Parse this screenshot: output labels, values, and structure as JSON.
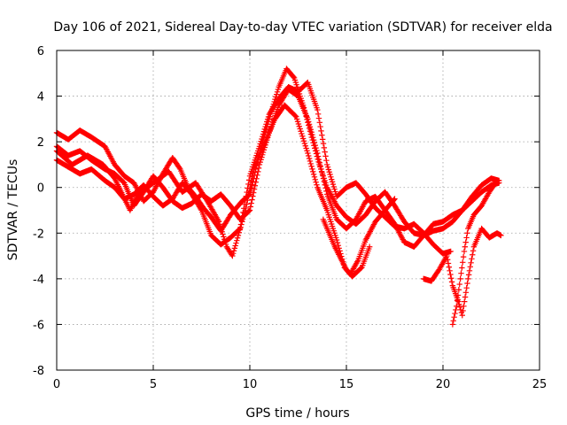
{
  "chart_data": {
    "type": "scatter",
    "title": "Day 106 of 2021, Sidereal Day-to-day VTEC variation (SDTVAR) for receiver elda",
    "xlabel": "GPS time / hours",
    "ylabel": "SDTVAR / TECUs",
    "xlim": [
      0,
      25
    ],
    "ylim": [
      -8,
      6
    ],
    "xticks": [
      0,
      5,
      10,
      15,
      20,
      25
    ],
    "yticks": [
      -8,
      -6,
      -4,
      -2,
      0,
      2,
      4,
      6
    ],
    "grid": true,
    "marker": "+",
    "series": [
      {
        "name": "SDTVAR",
        "color": "#ff0000",
        "tracks": [
          [
            [
              0,
              2.4
            ],
            [
              0.6,
              2.1
            ],
            [
              1.2,
              2.5
            ],
            [
              1.8,
              2.2
            ],
            [
              2.5,
              1.8
            ],
            [
              3,
              1.0
            ],
            [
              3.5,
              0.5
            ],
            [
              4,
              0.2
            ],
            [
              4.5,
              -0.6
            ],
            [
              5,
              -0.2
            ],
            [
              5.5,
              0.6
            ],
            [
              6,
              1.3
            ],
            [
              6.4,
              0.8
            ],
            [
              6.8,
              0.0
            ],
            [
              7.2,
              -0.4
            ],
            [
              7.6,
              -0.9
            ],
            [
              8,
              -1.3
            ],
            [
              8.5,
              -1.9
            ],
            [
              9,
              -1.2
            ],
            [
              9.6,
              -0.6
            ],
            [
              10,
              -0.3
            ],
            [
              10.5,
              1.5
            ],
            [
              11,
              3.0
            ],
            [
              11.5,
              4.4
            ],
            [
              11.9,
              5.2
            ],
            [
              12.3,
              4.8
            ],
            [
              12.8,
              3.5
            ],
            [
              13.2,
              2.2
            ],
            [
              13.6,
              1.0
            ],
            [
              14,
              0.0
            ],
            [
              14.5,
              -0.8
            ],
            [
              15,
              -1.3
            ],
            [
              15.5,
              -1.6
            ],
            [
              16,
              -1.2
            ],
            [
              16.5,
              -0.6
            ],
            [
              17,
              -0.2
            ],
            [
              17.5,
              -0.8
            ],
            [
              18,
              -1.5
            ],
            [
              18.5,
              -2.0
            ],
            [
              19,
              -2.1
            ],
            [
              19.5,
              -1.9
            ],
            [
              20,
              -1.8
            ],
            [
              20.5,
              -1.5
            ],
            [
              21,
              -1.0
            ],
            [
              21.5,
              -0.4
            ],
            [
              22,
              0.1
            ],
            [
              22.5,
              0.4
            ],
            [
              22.9,
              0.3
            ]
          ],
          [
            [
              0,
              1.8
            ],
            [
              0.6,
              1.4
            ],
            [
              1.2,
              1.6
            ],
            [
              1.8,
              1.2
            ],
            [
              2.5,
              0.8
            ],
            [
              3,
              0.6
            ],
            [
              3.5,
              0.2
            ],
            [
              4,
              -0.8
            ],
            [
              4.5,
              -0.2
            ],
            [
              5,
              0.5
            ],
            [
              5.5,
              0.0
            ],
            [
              6,
              -0.6
            ],
            [
              6.5,
              -0.9
            ],
            [
              7,
              -0.7
            ],
            [
              7.5,
              -0.3
            ],
            [
              8,
              -0.6
            ],
            [
              8.5,
              -0.3
            ],
            [
              9,
              -0.8
            ],
            [
              9.5,
              -1.4
            ],
            [
              10,
              -1.0
            ],
            [
              10.5,
              1.0
            ],
            [
              11,
              2.4
            ],
            [
              11.5,
              3.6
            ],
            [
              12,
              4.3
            ],
            [
              12.5,
              4.0
            ],
            [
              13,
              3.0
            ],
            [
              13.5,
              1.5
            ],
            [
              14,
              -0.3
            ],
            [
              14.5,
              -1.4
            ],
            [
              15,
              -1.8
            ],
            [
              15.5,
              -1.4
            ],
            [
              16,
              -0.6
            ],
            [
              16.5,
              -0.4
            ],
            [
              17,
              -1.0
            ],
            [
              17.5,
              -1.6
            ],
            [
              18,
              -2.4
            ],
            [
              18.5,
              -2.6
            ],
            [
              19,
              -2.1
            ],
            [
              19.5,
              -1.6
            ],
            [
              20,
              -1.5
            ],
            [
              20.5,
              -1.2
            ],
            [
              21,
              -1.0
            ],
            [
              21.5,
              -0.6
            ],
            [
              22,
              -0.2
            ],
            [
              22.5,
              0.1
            ],
            [
              22.9,
              0.2
            ]
          ],
          [
            [
              0,
              1.2
            ],
            [
              0.6,
              0.9
            ],
            [
              1.2,
              0.6
            ],
            [
              1.8,
              0.8
            ],
            [
              2.5,
              0.3
            ],
            [
              3,
              0.0
            ],
            [
              3.5,
              -0.5
            ],
            [
              4,
              -0.3
            ],
            [
              4.5,
              0.1
            ],
            [
              5,
              -0.4
            ],
            [
              5.5,
              -0.8
            ],
            [
              6,
              -0.5
            ],
            [
              6.5,
              0.2
            ],
            [
              7,
              -0.3
            ],
            [
              7.5,
              -1.0
            ],
            [
              8,
              -2.1
            ],
            [
              8.5,
              -2.5
            ],
            [
              9,
              -2.2
            ],
            [
              9.5,
              -1.8
            ],
            [
              10,
              0.5
            ],
            [
              10.5,
              1.8
            ],
            [
              11,
              3.2
            ],
            [
              11.5,
              3.9
            ],
            [
              12,
              4.4
            ],
            [
              12.5,
              4.2
            ],
            [
              13,
              4.6
            ],
            [
              13.5,
              3.4
            ],
            [
              14,
              1.0
            ],
            [
              14.5,
              -0.4
            ],
            [
              15,
              0.0
            ],
            [
              15.5,
              0.2
            ],
            [
              16,
              -0.3
            ],
            [
              16.5,
              -0.9
            ],
            [
              17,
              -1.3
            ],
            [
              17.5,
              -1.7
            ],
            [
              18,
              -1.8
            ],
            [
              18.5,
              -1.6
            ],
            [
              19,
              -2.0
            ],
            [
              19.5,
              -2.5
            ],
            [
              20,
              -2.9
            ],
            [
              20.4,
              -2.8
            ]
          ],
          [
            [
              0,
              1.6
            ],
            [
              0.8,
              1.0
            ],
            [
              1.6,
              1.4
            ],
            [
              2.4,
              1.0
            ],
            [
              3,
              0.4
            ],
            [
              3.8,
              -1.0
            ],
            [
              4.2,
              -0.3
            ],
            [
              5,
              0.2
            ],
            [
              5.8,
              0.7
            ],
            [
              6.5,
              -0.2
            ],
            [
              7.2,
              0.2
            ],
            [
              7.8,
              -0.6
            ],
            [
              8.4,
              -1.5
            ],
            [
              8.8,
              -2.6
            ],
            [
              9.1,
              -3.0
            ],
            [
              9.4,
              -2.1
            ],
            [
              9.8,
              -0.9
            ],
            [
              10.2,
              0.8
            ],
            [
              10.8,
              2.0
            ],
            [
              11.3,
              3.0
            ],
            [
              11.8,
              3.6
            ],
            [
              12.4,
              3.1
            ],
            [
              13,
              1.5
            ],
            [
              13.5,
              0.0
            ],
            [
              14,
              -1.0
            ],
            [
              14.5,
              -2.3
            ],
            [
              14.9,
              -3.5
            ],
            [
              15.2,
              -3.8
            ],
            [
              15.6,
              -3.2
            ],
            [
              16,
              -2.3
            ],
            [
              16.5,
              -1.5
            ],
            [
              17,
              -1.0
            ],
            [
              17.5,
              -0.5
            ]
          ],
          [
            [
              13.8,
              -1.4
            ],
            [
              14.4,
              -2.6
            ],
            [
              15.0,
              -3.6
            ],
            [
              15.3,
              -3.9
            ],
            [
              15.8,
              -3.5
            ],
            [
              16.2,
              -2.6
            ]
          ],
          [
            [
              19.0,
              -4.0
            ],
            [
              19.4,
              -4.1
            ],
            [
              19.8,
              -3.6
            ],
            [
              20.2,
              -3.0
            ],
            [
              20.5,
              -4.3
            ],
            [
              20.8,
              -5.0
            ],
            [
              21.0,
              -5.6
            ],
            [
              21.3,
              -4.0
            ],
            [
              21.6,
              -2.6
            ],
            [
              22.0,
              -1.8
            ],
            [
              22.4,
              -2.2
            ],
            [
              22.8,
              -2.0
            ],
            [
              23.0,
              -2.1
            ]
          ],
          [
            [
              20.5,
              -6.0
            ],
            [
              20.7,
              -5.2
            ],
            [
              20.9,
              -4.0
            ],
            [
              21.1,
              -2.8
            ],
            [
              21.3,
              -1.8
            ],
            [
              21.6,
              -1.2
            ],
            [
              22.0,
              -0.8
            ],
            [
              22.4,
              -0.2
            ],
            [
              22.8,
              0.3
            ]
          ]
        ]
      }
    ]
  }
}
